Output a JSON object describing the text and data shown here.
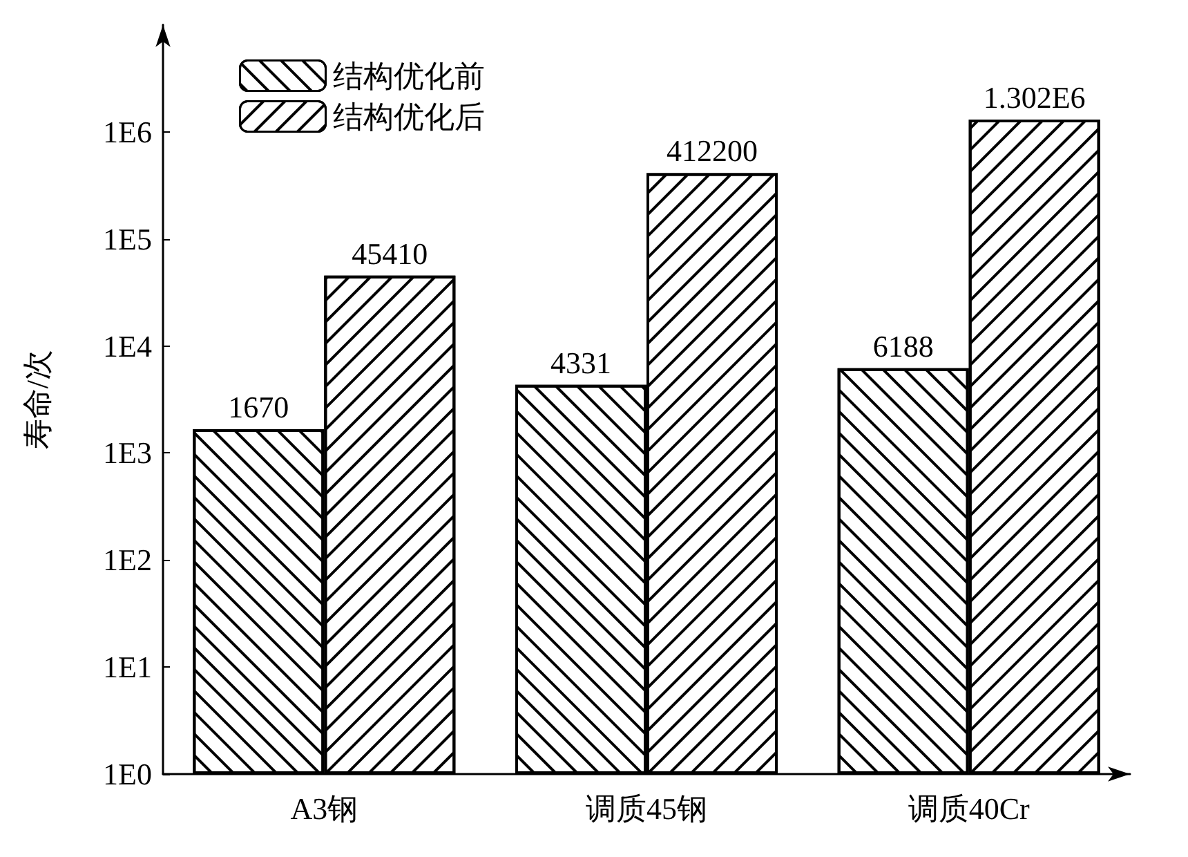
{
  "chart_data": {
    "type": "bar",
    "categories": [
      "A3钢",
      "调质45钢",
      "调质40Cr"
    ],
    "ylabel": "寿命/次",
    "log": "y",
    "ylim": [
      1,
      10000000
    ],
    "yticks": [
      {
        "value": 1,
        "label": "1E0"
      },
      {
        "value": 10,
        "label": "1E1"
      },
      {
        "value": 100,
        "label": "1E2"
      },
      {
        "value": 1000,
        "label": "1E3"
      },
      {
        "value": 10000,
        "label": "1E4"
      },
      {
        "value": 100000,
        "label": "1E5"
      },
      {
        "value": 1000000,
        "label": "1E6"
      }
    ],
    "series": [
      {
        "name": "结构优化前",
        "color": "#ffffff",
        "values": [
          1670,
          4331,
          6188
        ],
        "value_labels": [
          "1670",
          "4331",
          "6188"
        ]
      },
      {
        "name": "结构优化后",
        "color": "#ffffff",
        "values": [
          45410,
          412200,
          1302000
        ],
        "value_labels": [
          "45410",
          "412200",
          "1.302E6"
        ]
      }
    ],
    "legend": "top left",
    "grid": false
  }
}
